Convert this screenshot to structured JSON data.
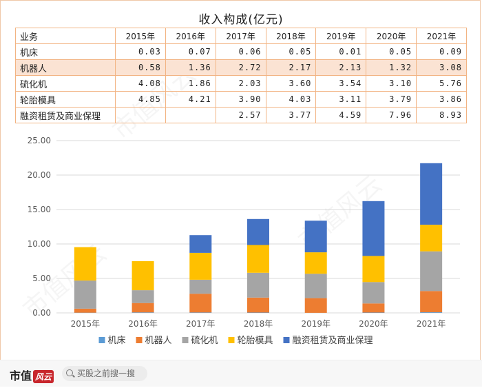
{
  "title": "收入构成(亿元)",
  "table": {
    "header": [
      "业务",
      "2015年",
      "2016年",
      "2017年",
      "2018年",
      "2019年",
      "2020年",
      "2021年"
    ],
    "rows": [
      {
        "name": "机床",
        "values": [
          "0.03",
          "0.07",
          "0.06",
          "0.05",
          "0.01",
          "0.05",
          "0.09"
        ]
      },
      {
        "name": "机器人",
        "values": [
          "0.58",
          "1.36",
          "2.72",
          "2.17",
          "2.13",
          "1.32",
          "3.08"
        ]
      },
      {
        "name": "硫化机",
        "values": [
          "4.08",
          "1.86",
          "2.03",
          "3.60",
          "3.54",
          "3.10",
          "5.76"
        ]
      },
      {
        "name": "轮胎模具",
        "values": [
          "4.85",
          "4.21",
          "3.90",
          "4.03",
          "3.11",
          "3.79",
          "3.86"
        ]
      },
      {
        "name": "融资租赁及商业保理",
        "values": [
          "",
          "",
          "2.57",
          "3.77",
          "4.59",
          "7.96",
          "8.93"
        ]
      }
    ]
  },
  "chart_data": {
    "type": "bar",
    "stacked": true,
    "categories": [
      "2015年",
      "2016年",
      "2017年",
      "2018年",
      "2019年",
      "2020年",
      "2021年"
    ],
    "series": [
      {
        "name": "机床",
        "color": "#5b9bd5",
        "values": [
          0.03,
          0.07,
          0.06,
          0.05,
          0.01,
          0.05,
          0.09
        ]
      },
      {
        "name": "机器人",
        "color": "#ed7d31",
        "values": [
          0.58,
          1.36,
          2.72,
          2.17,
          2.13,
          1.32,
          3.08
        ]
      },
      {
        "name": "硫化机",
        "color": "#a5a5a5",
        "values": [
          4.08,
          1.86,
          2.03,
          3.6,
          3.54,
          3.1,
          5.76
        ]
      },
      {
        "name": "轮胎模具",
        "color": "#ffc000",
        "values": [
          4.85,
          4.21,
          3.9,
          4.03,
          3.11,
          3.79,
          3.86
        ]
      },
      {
        "name": "融资租赁及商业保理",
        "color": "#4472c4",
        "values": [
          0,
          0,
          2.57,
          3.77,
          4.59,
          7.96,
          8.93
        ]
      }
    ],
    "yticks": [
      "0.00",
      "5.00",
      "10.00",
      "15.00",
      "20.00",
      "25.00"
    ],
    "ylim": [
      0,
      25
    ],
    "grid": true,
    "legend": "bottom"
  },
  "footer": {
    "brand": "市值",
    "brand_tag": "风云",
    "search_placeholder": "买股之前搜一搜"
  }
}
